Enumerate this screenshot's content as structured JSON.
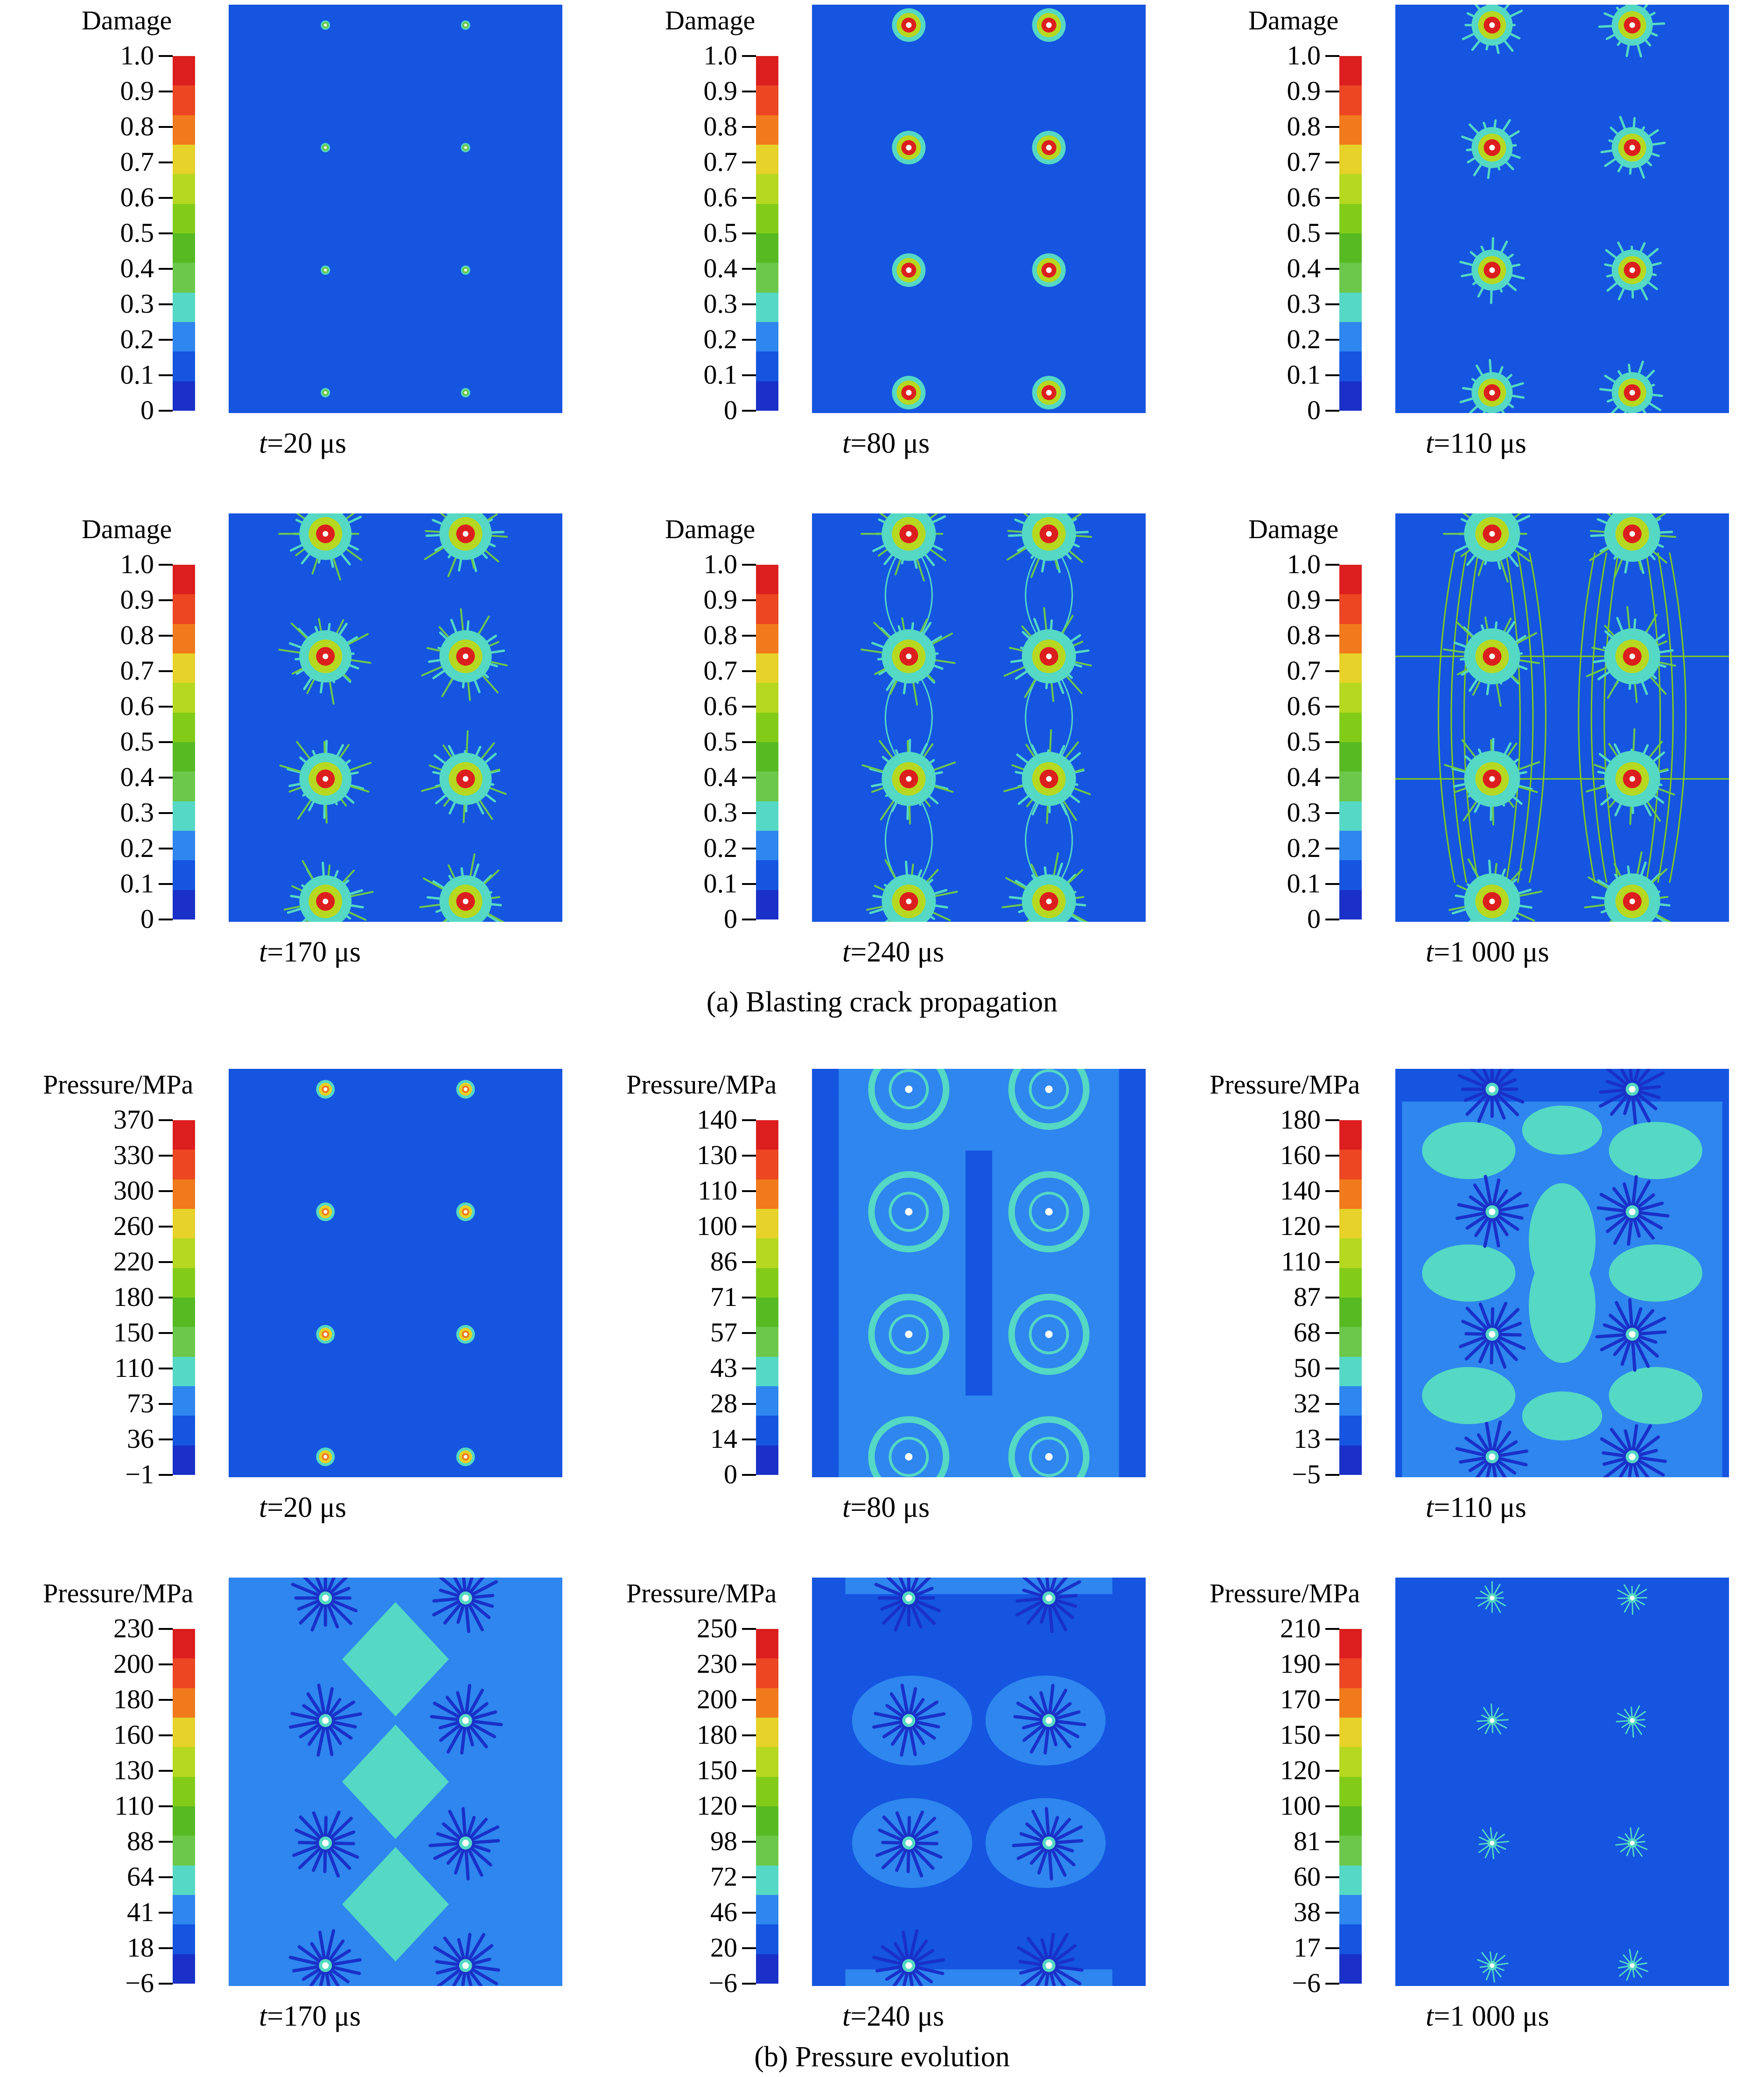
{
  "figure": {
    "caption_a": "(a) Blasting crack propagation",
    "caption_b": "(b) Pressure evolution",
    "colors": [
      "#1a30c8",
      "#1555e0",
      "#2e86ee",
      "#55d8c4",
      "#6cc84a",
      "#58ba22",
      "#82cc18",
      "#b6d820",
      "#e6d228",
      "#f07a1c",
      "#ec4622",
      "#dc1e1e"
    ],
    "panels": [
      {
        "title": "Damage",
        "type": "damage",
        "stage": 0,
        "time_var": "t",
        "time_value": "=20 μs",
        "ticks": [
          "1.0",
          "0.9",
          "0.8",
          "0.7",
          "0.6",
          "0.5",
          "0.4",
          "0.3",
          "0.2",
          "0.1",
          "0"
        ]
      },
      {
        "title": "Damage",
        "type": "damage",
        "stage": 1,
        "time_var": "t",
        "time_value": "=80 μs",
        "ticks": [
          "1.0",
          "0.9",
          "0.8",
          "0.7",
          "0.6",
          "0.5",
          "0.4",
          "0.3",
          "0.2",
          "0.1",
          "0"
        ]
      },
      {
        "title": "Damage",
        "type": "damage",
        "stage": 2,
        "time_var": "t",
        "time_value": "=110 μs",
        "ticks": [
          "1.0",
          "0.9",
          "0.8",
          "0.7",
          "0.6",
          "0.5",
          "0.4",
          "0.3",
          "0.2",
          "0.1",
          "0"
        ]
      },
      {
        "title": "Damage",
        "type": "damage",
        "stage": 3,
        "time_var": "t",
        "time_value": "=170 μs",
        "ticks": [
          "1.0",
          "0.9",
          "0.8",
          "0.7",
          "0.6",
          "0.5",
          "0.4",
          "0.3",
          "0.2",
          "0.1",
          "0"
        ]
      },
      {
        "title": "Damage",
        "type": "damage",
        "stage": 4,
        "time_var": "t",
        "time_value": "=240 μs",
        "ticks": [
          "1.0",
          "0.9",
          "0.8",
          "0.7",
          "0.6",
          "0.5",
          "0.4",
          "0.3",
          "0.2",
          "0.1",
          "0"
        ]
      },
      {
        "title": "Damage",
        "type": "damage",
        "stage": 5,
        "time_var": "t",
        "time_value": "=1 000 μs",
        "ticks": [
          "1.0",
          "0.9",
          "0.8",
          "0.7",
          "0.6",
          "0.5",
          "0.4",
          "0.3",
          "0.2",
          "0.1",
          "0"
        ]
      },
      {
        "title": "Pressure/MPa",
        "type": "pressure",
        "stage": 0,
        "time_var": "t",
        "time_value": "=20 μs",
        "ticks": [
          "370",
          "330",
          "300",
          "260",
          "220",
          "180",
          "150",
          "110",
          "73",
          "36",
          "−1"
        ]
      },
      {
        "title": "Pressure/MPa",
        "type": "pressure",
        "stage": 1,
        "time_var": "t",
        "time_value": "=80 μs",
        "ticks": [
          "140",
          "130",
          "110",
          "100",
          "86",
          "71",
          "57",
          "43",
          "28",
          "14",
          "0"
        ]
      },
      {
        "title": "Pressure/MPa",
        "type": "pressure",
        "stage": 2,
        "time_var": "t",
        "time_value": "=110 μs",
        "ticks": [
          "180",
          "160",
          "140",
          "120",
          "110",
          "87",
          "68",
          "50",
          "32",
          "13",
          "−5"
        ]
      },
      {
        "title": "Pressure/MPa",
        "type": "pressure",
        "stage": 3,
        "time_var": "t",
        "time_value": "=170 μs",
        "ticks": [
          "230",
          "200",
          "180",
          "160",
          "130",
          "110",
          "88",
          "64",
          "41",
          "18",
          "−6"
        ]
      },
      {
        "title": "Pressure/MPa",
        "type": "pressure",
        "stage": 4,
        "time_var": "t",
        "time_value": "=240 μs",
        "ticks": [
          "250",
          "230",
          "200",
          "180",
          "150",
          "120",
          "98",
          "72",
          "46",
          "20",
          "−6"
        ]
      },
      {
        "title": "Pressure/MPa",
        "type": "pressure",
        "stage": 5,
        "time_var": "t",
        "time_value": "=1 000 μs",
        "ticks": [
          "210",
          "190",
          "170",
          "150",
          "120",
          "100",
          "81",
          "60",
          "38",
          "17",
          "−6"
        ]
      }
    ]
  }
}
